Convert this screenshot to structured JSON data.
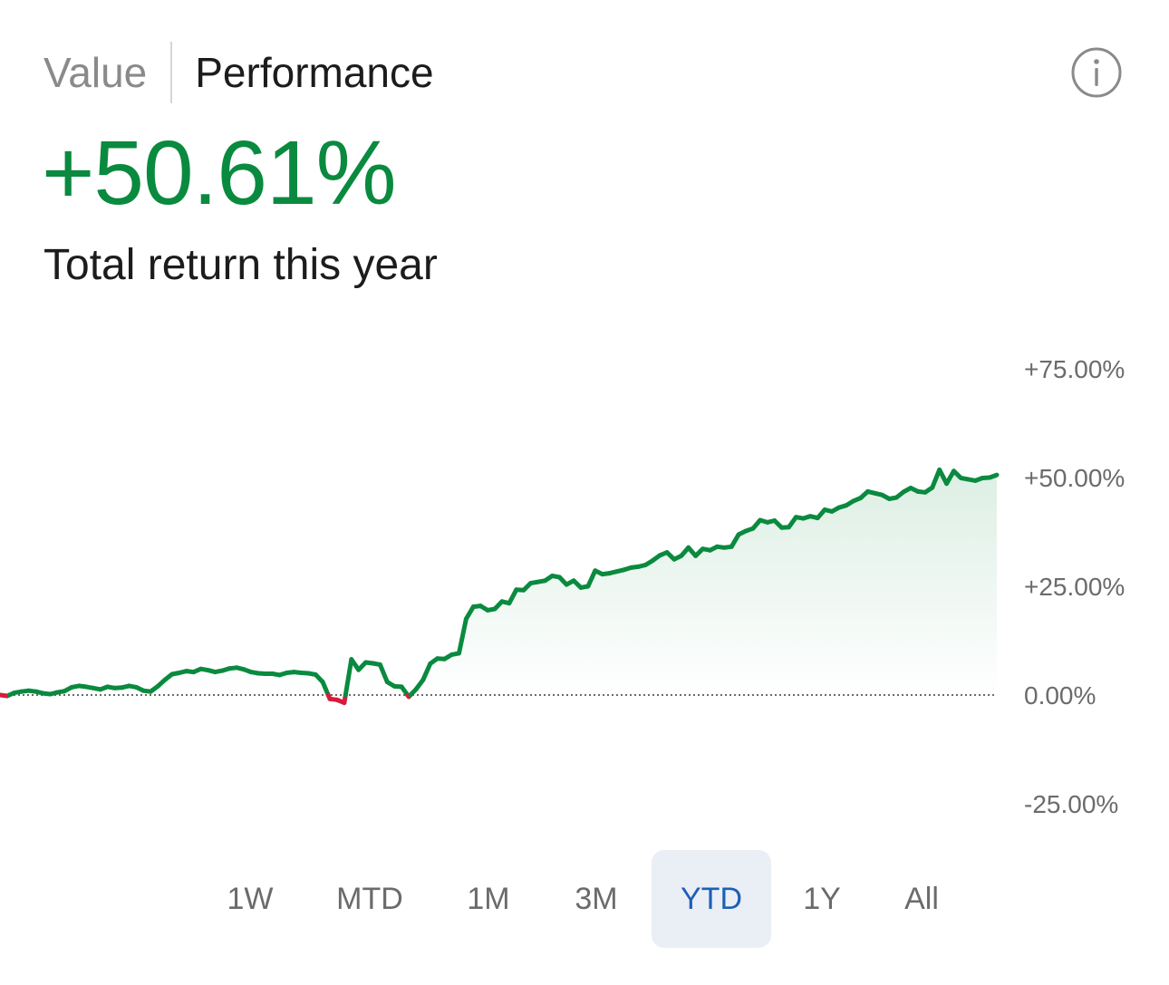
{
  "tabs": {
    "value_label": "Value",
    "performance_label": "Performance",
    "active": "Performance"
  },
  "info_icon": "info-circle-icon",
  "headline": {
    "value": "+50.61%",
    "caption": "Total return this year"
  },
  "colors": {
    "positive": "#0a8a3f",
    "negative": "#d81b3a",
    "active_range_bg": "#eaeef5",
    "active_range_text": "#1c5fb8",
    "muted_text": "#6b6b6b"
  },
  "chart_data": {
    "type": "area",
    "title": "",
    "xlabel": "",
    "ylabel": "",
    "ylim": [
      -25,
      75
    ],
    "y_ticks": [
      "+75.00%",
      "+50.00%",
      "+25.00%",
      "0.00%",
      "-25.00%"
    ],
    "y_tick_values": [
      75,
      50,
      25,
      0,
      -25
    ],
    "baseline": 0,
    "axis_side": "right",
    "grid": false,
    "series": [
      {
        "values": [
          0,
          -0.2,
          0.5,
          0.8,
          1.0,
          0.8,
          0.4,
          0.2,
          0.6,
          0.9,
          1.8,
          2.1,
          1.9,
          1.6,
          1.3,
          1.9,
          1.6,
          1.7,
          2.1,
          1.8,
          1.0,
          0.8,
          2.0,
          3.5,
          4.8,
          5.1,
          5.5,
          5.3,
          6.0,
          5.7,
          5.3,
          5.6,
          6.1,
          6.3,
          5.9,
          5.3,
          5.0,
          4.9,
          4.9,
          4.6,
          5.1,
          5.3,
          5.1,
          5.0,
          4.7,
          3.0,
          -0.9,
          -1.1,
          -1.8,
          8.2,
          5.8,
          7.5,
          7.3,
          7.0,
          3.0,
          2.0,
          1.9,
          -0.4,
          1.3,
          3.5,
          7.2,
          8.4,
          8.3,
          9.3,
          9.6,
          17.5,
          20.3,
          20.5,
          19.5,
          19.8,
          21.5,
          21.1,
          24.2,
          24.1,
          25.7,
          26.0,
          26.3,
          27.4,
          27.1,
          25.4,
          26.3,
          24.7,
          25.0,
          28.6,
          27.8,
          28.0,
          28.4,
          28.8,
          29.3,
          29.5,
          29.9,
          30.9,
          32.1,
          32.8,
          31.2,
          32.0,
          33.9,
          32.0,
          33.6,
          33.3,
          34.1,
          33.9,
          34.1,
          36.9,
          37.7,
          38.3,
          40.2,
          39.7,
          40.1,
          38.5,
          38.6,
          40.9,
          40.6,
          41.1,
          40.7,
          42.6,
          42.2,
          43.1,
          43.6,
          44.6,
          45.3,
          46.8,
          46.4,
          46.0,
          45.1,
          45.4,
          46.7,
          47.6,
          46.8,
          46.6,
          47.7,
          51.8,
          48.6,
          51.5,
          49.9,
          49.6,
          49.3,
          49.9,
          50.0,
          50.61
        ]
      }
    ]
  },
  "ranges": [
    {
      "label": "1W",
      "active": false
    },
    {
      "label": "MTD",
      "active": false
    },
    {
      "label": "1M",
      "active": false
    },
    {
      "label": "3M",
      "active": false
    },
    {
      "label": "YTD",
      "active": true
    },
    {
      "label": "1Y",
      "active": false
    },
    {
      "label": "All",
      "active": false
    }
  ]
}
